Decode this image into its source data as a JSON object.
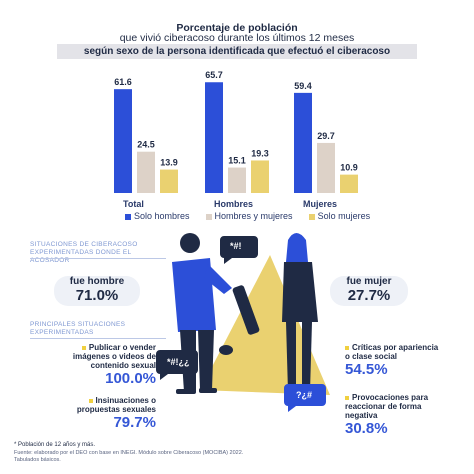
{
  "header": {
    "title_bold": "Porcentaje de población",
    "title_rest": "que vivió ciberacoso durante los últimos 12 meses",
    "subtitle": "según sexo de la persona identificada que efectuó el ciberacoso"
  },
  "colors": {
    "blue": "#2c4fd8",
    "beige": "#ddd2c8",
    "yellow": "#ead170"
  },
  "chart_data": {
    "type": "bar",
    "categories": [
      "Total",
      "Hombres",
      "Mujeres"
    ],
    "series": [
      {
        "name": "Solo hombres",
        "values": [
          61.6,
          65.7,
          59.4
        ]
      },
      {
        "name": "Hombres y mujeres",
        "values": [
          24.5,
          15.1,
          29.7
        ]
      },
      {
        "name": "Solo mujeres",
        "values": [
          13.9,
          19.3,
          10.9
        ]
      }
    ],
    "ylim": [
      0,
      70
    ],
    "legend_position": "bottom"
  },
  "legend": [
    "Solo hombres",
    "Hombres y mujeres",
    "Solo mujeres"
  ],
  "section1": {
    "label": "Situaciones de ciberacoso experimentadas donde el acosador"
  },
  "pills": {
    "hombre": {
      "label": "fue hombre",
      "value": "71.0%"
    },
    "mujer": {
      "label": "fue mujer",
      "value": "27.7%"
    }
  },
  "section2": {
    "label": "Principales situaciones experimentadas"
  },
  "stats": {
    "left1": {
      "text": "Publicar o vender imágenes o videos de contenido sexual",
      "value": "100.0%"
    },
    "left2": {
      "text": "Insinuaciones o propuestas sexuales",
      "value": "79.7%"
    },
    "right1": {
      "text": "Críticas por apariencia o clase social",
      "value": "54.5%"
    },
    "right2": {
      "text": "Provocaciones para reaccionar de forma negativa",
      "value": "30.8%"
    }
  },
  "bubbles": {
    "b1": "*#!",
    "b2": "*#!¿¿",
    "b3": "?¿#",
    "b4": "?¿#"
  },
  "footnotes": {
    "f1": "* Población de 12 años y más.",
    "f2": "Fuente: elaborado por el DEO con base en INEGI. Módulo sobre Ciberacoso (MOCIBA) 2022.",
    "f3": "Tabulados básicos."
  }
}
